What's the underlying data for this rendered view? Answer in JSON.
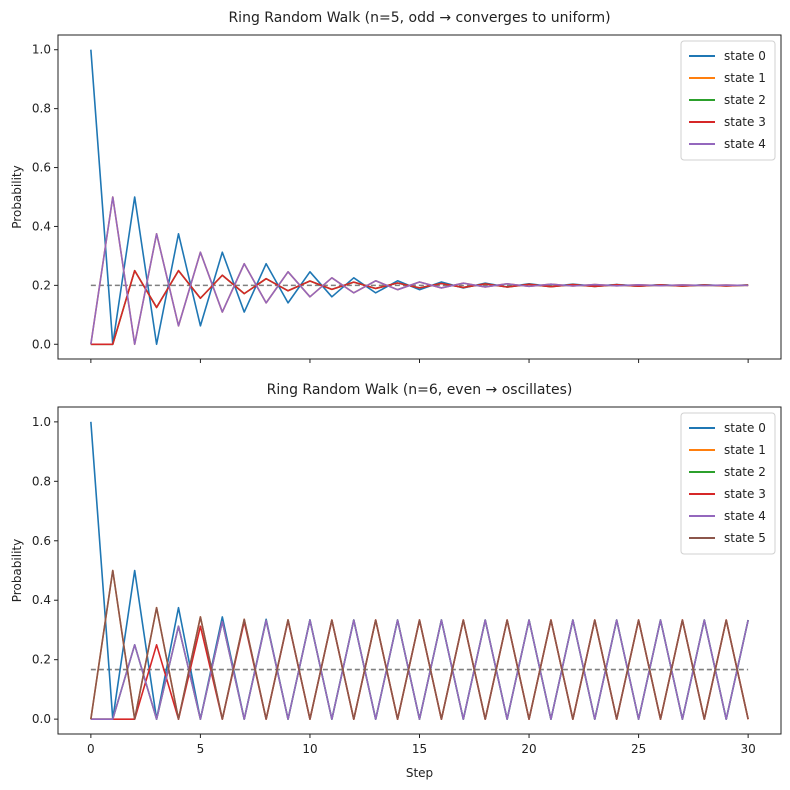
{
  "chart_data": [
    {
      "type": "line",
      "title": "Ring Random Walk (n=5, odd → converges to uniform)",
      "xlabel": "",
      "ylabel": "Probability",
      "xlim": [
        -1.5,
        31.5
      ],
      "ylim": [
        -0.05,
        1.05
      ],
      "xticks": [
        0,
        5,
        10,
        15,
        20,
        25,
        30
      ],
      "xtick_labels_visible": false,
      "yticks": [
        0.0,
        0.2,
        0.4,
        0.6,
        0.8,
        1.0
      ],
      "ytick_labels": [
        "0.0",
        "0.2",
        "0.4",
        "0.6",
        "0.8",
        "1.0"
      ],
      "legend_position": "top-right",
      "uniform_line": {
        "value": 0.2,
        "color": "#7f7f7f",
        "style": "dashed"
      },
      "x": [
        0,
        1,
        2,
        3,
        4,
        5,
        6,
        7,
        8,
        9,
        10,
        11,
        12,
        13,
        14,
        15,
        16,
        17,
        18,
        19,
        20,
        21,
        22,
        23,
        24,
        25,
        26,
        27,
        28,
        29,
        30
      ],
      "series": [
        {
          "name": "state 0",
          "color": "#1f77b4",
          "values": [
            1,
            0,
            0.5,
            0,
            0.375,
            0.0625,
            0.3125,
            0.109375,
            0.2734,
            0.1406,
            0.2461,
            0.1611,
            0.2256,
            0.1746,
            0.2155,
            0.1853,
            0.2115,
            0.1913,
            0.2076,
            0.1947,
            0.2054,
            0.1966,
            0.2039,
            0.1978,
            0.2028,
            0.1985,
            0.202,
            0.199,
            0.2015,
            0.1993,
            0.201
          ]
        },
        {
          "name": "state 1",
          "color": "#ff7f0e",
          "values": [
            0,
            0.5,
            0,
            0.375,
            0.0625,
            0.3125,
            0.109375,
            0.2734,
            0.1406,
            0.2461,
            0.1611,
            0.2256,
            0.1746,
            0.2155,
            0.1853,
            0.2115,
            0.1913,
            0.2076,
            0.1947,
            0.2054,
            0.1966,
            0.2039,
            0.1978,
            0.2028,
            0.1985,
            0.202,
            0.199,
            0.2015,
            0.1993,
            0.201,
            0.1995
          ]
        },
        {
          "name": "state 2",
          "color": "#2ca02c",
          "values": [
            0,
            0,
            0.25,
            0.125,
            0.25,
            0.15625,
            0.234375,
            0.1719,
            0.2227,
            0.1816,
            0.2148,
            0.1865,
            0.2109,
            0.1895,
            0.2081,
            0.1915,
            0.2063,
            0.1929,
            0.205,
            0.1944,
            0.2037,
            0.1955,
            0.2028,
            0.1963,
            0.2022,
            0.197,
            0.2017,
            0.1976,
            0.2013,
            0.198,
            0.201
          ]
        },
        {
          "name": "state 3",
          "color": "#d62728",
          "values": [
            0,
            0,
            0.25,
            0.125,
            0.25,
            0.15625,
            0.234375,
            0.1719,
            0.2227,
            0.1816,
            0.2148,
            0.1865,
            0.2109,
            0.1895,
            0.2081,
            0.1915,
            0.2063,
            0.1929,
            0.205,
            0.1944,
            0.2037,
            0.1955,
            0.2028,
            0.1963,
            0.2022,
            0.197,
            0.2017,
            0.1976,
            0.2013,
            0.198,
            0.201
          ]
        },
        {
          "name": "state 4",
          "color": "#9467bd",
          "values": [
            0,
            0.5,
            0,
            0.375,
            0.0625,
            0.3125,
            0.109375,
            0.2734,
            0.1406,
            0.2461,
            0.1611,
            0.2256,
            0.1746,
            0.2155,
            0.1853,
            0.2115,
            0.1913,
            0.2076,
            0.1947,
            0.2054,
            0.1966,
            0.2039,
            0.1978,
            0.2028,
            0.1985,
            0.202,
            0.199,
            0.2015,
            0.1993,
            0.201,
            0.1995
          ]
        }
      ]
    },
    {
      "type": "line",
      "title": "Ring Random Walk (n=6, even → oscillates)",
      "xlabel": "Step",
      "ylabel": "Probability",
      "xlim": [
        -1.5,
        31.5
      ],
      "ylim": [
        -0.05,
        1.05
      ],
      "xticks": [
        0,
        5,
        10,
        15,
        20,
        25,
        30
      ],
      "xtick_labels_visible": true,
      "xtick_labels": [
        "0",
        "5",
        "10",
        "15",
        "20",
        "25",
        "30"
      ],
      "yticks": [
        0.0,
        0.2,
        0.4,
        0.6,
        0.8,
        1.0
      ],
      "ytick_labels": [
        "0.0",
        "0.2",
        "0.4",
        "0.6",
        "0.8",
        "1.0"
      ],
      "legend_position": "top-right",
      "uniform_line": {
        "value": 0.1667,
        "color": "#7f7f7f",
        "style": "dashed"
      },
      "x": [
        0,
        1,
        2,
        3,
        4,
        5,
        6,
        7,
        8,
        9,
        10,
        11,
        12,
        13,
        14,
        15,
        16,
        17,
        18,
        19,
        20,
        21,
        22,
        23,
        24,
        25,
        26,
        27,
        28,
        29,
        30
      ],
      "series": [
        {
          "name": "state 0",
          "color": "#1f77b4",
          "values": [
            1,
            0,
            0.5,
            0,
            0.375,
            0,
            0.3438,
            0,
            0.3359,
            0,
            0.334,
            0,
            0.3335,
            0,
            0.3334,
            0,
            0.3333,
            0,
            0.3333,
            0,
            0.3333,
            0,
            0.3333,
            0,
            0.3333,
            0,
            0.3333,
            0,
            0.3333,
            0,
            0.3333
          ]
        },
        {
          "name": "state 1",
          "color": "#ff7f0e",
          "values": [
            0,
            0.5,
            0,
            0.375,
            0,
            0.3438,
            0,
            0.3359,
            0,
            0.334,
            0,
            0.3335,
            0,
            0.3334,
            0,
            0.3333,
            0,
            0.3333,
            0,
            0.3333,
            0,
            0.3333,
            0,
            0.3333,
            0,
            0.3333,
            0,
            0.3333,
            0,
            0.3333,
            0
          ]
        },
        {
          "name": "state 2",
          "color": "#2ca02c",
          "values": [
            0,
            0,
            0.25,
            0,
            0.3125,
            0,
            0.3281,
            0,
            0.332,
            0,
            0.333,
            0,
            0.3332,
            0,
            0.3333,
            0,
            0.3333,
            0,
            0.3333,
            0,
            0.3333,
            0,
            0.3333,
            0,
            0.3333,
            0,
            0.3333,
            0,
            0.3333,
            0,
            0.3333
          ]
        },
        {
          "name": "state 3",
          "color": "#d62728",
          "values": [
            0,
            0,
            0,
            0.25,
            0,
            0.3125,
            0,
            0.3281,
            0,
            0.332,
            0,
            0.333,
            0,
            0.3332,
            0,
            0.3333,
            0,
            0.3333,
            0,
            0.3333,
            0,
            0.3333,
            0,
            0.3333,
            0,
            0.3333,
            0,
            0.3333,
            0,
            0.3333,
            0
          ]
        },
        {
          "name": "state 4",
          "color": "#9467bd",
          "values": [
            0,
            0,
            0.25,
            0,
            0.3125,
            0,
            0.3281,
            0,
            0.332,
            0,
            0.333,
            0,
            0.3332,
            0,
            0.3333,
            0,
            0.3333,
            0,
            0.3333,
            0,
            0.3333,
            0,
            0.3333,
            0,
            0.3333,
            0,
            0.3333,
            0,
            0.3333,
            0,
            0.3333
          ]
        },
        {
          "name": "state 5",
          "color": "#8c564b",
          "values": [
            0,
            0.5,
            0,
            0.375,
            0,
            0.3438,
            0,
            0.3359,
            0,
            0.334,
            0,
            0.3335,
            0,
            0.3334,
            0,
            0.3333,
            0,
            0.3333,
            0,
            0.3333,
            0,
            0.3333,
            0,
            0.3333,
            0,
            0.3333,
            0,
            0.3333,
            0,
            0.3333,
            0
          ]
        }
      ]
    }
  ]
}
